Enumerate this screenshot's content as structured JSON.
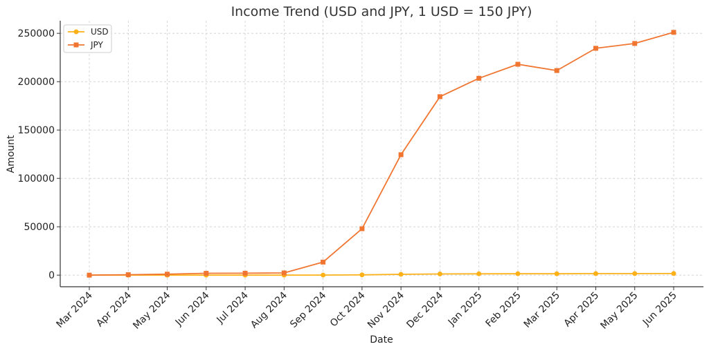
{
  "chart_data": {
    "type": "line",
    "title": "Income Trend (USD and JPY, 1 USD = 150 JPY)",
    "xlabel": "Date",
    "ylabel": "Amount",
    "categories": [
      "Mar 2024",
      "Apr 2024",
      "May 2024",
      "Jun 2024",
      "Jul 2024",
      "Aug 2024",
      "Sep 2024",
      "Oct 2024",
      "Nov 2024",
      "Dec 2024",
      "Jan 2025",
      "Feb 2025",
      "Mar 2025",
      "Apr 2025",
      "May 2025",
      "Jun 2025"
    ],
    "ylim": [
      -12000,
      263000
    ],
    "yticks": [
      0,
      50000,
      100000,
      150000,
      200000,
      250000
    ],
    "grid": true,
    "legend_position": "top-left",
    "series": [
      {
        "name": "USD",
        "color": "#FBB117",
        "marker": "circle",
        "values": [
          0,
          3,
          7,
          13,
          13,
          15,
          90,
          320,
          830,
          1230,
          1360,
          1450,
          1410,
          1560,
          1600,
          1670
        ]
      },
      {
        "name": "JPY",
        "color": "#F07530",
        "marker": "square",
        "values": [
          0,
          450,
          1000,
          1900,
          2000,
          2300,
          13500,
          48000,
          124500,
          184500,
          203500,
          218000,
          211500,
          234500,
          239500,
          251000
        ]
      }
    ]
  }
}
